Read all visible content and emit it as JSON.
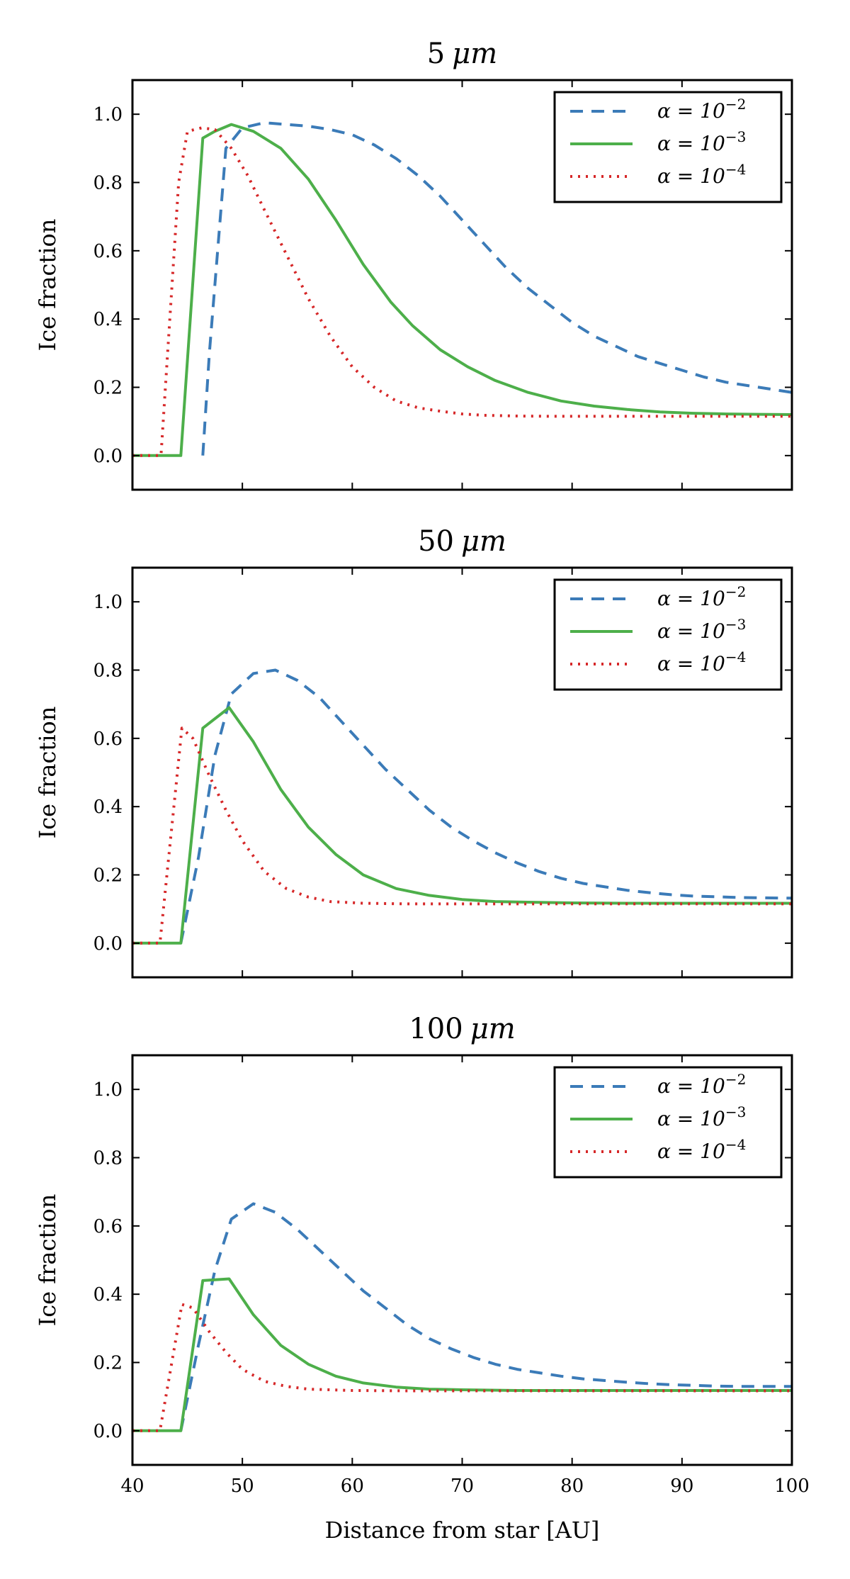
{
  "figure": {
    "xlabel": "Distance from star [AU]"
  },
  "chart_data": [
    {
      "type": "line",
      "title": "5 μm",
      "title_number": "5",
      "title_unit": "μm",
      "xlabel": "",
      "ylabel": "Ice fraction",
      "xlim": [
        40,
        100
      ],
      "ylim": [
        -0.1,
        1.1
      ],
      "xticks": [
        40,
        50,
        60,
        70,
        80,
        90,
        100
      ],
      "yticks": [
        "0.0",
        "0.2",
        "0.4",
        "0.6",
        "0.8",
        "1.0"
      ],
      "legend_position": "top-right",
      "series": [
        {
          "name": "α = 10^−2",
          "alpha_base": "α = 10",
          "alpha_exp": "−2",
          "color": "#3b7bb8",
          "style": "dashed",
          "x": [
            46.4,
            47.0,
            48.5,
            50,
            52,
            54,
            56,
            58,
            60,
            62,
            64,
            66,
            68,
            70,
            72,
            74,
            76,
            78,
            80,
            82,
            84,
            86,
            88,
            90,
            92,
            94,
            96,
            98,
            100
          ],
          "y": [
            0.0,
            0.3,
            0.9,
            0.96,
            0.975,
            0.97,
            0.965,
            0.955,
            0.94,
            0.91,
            0.87,
            0.82,
            0.76,
            0.69,
            0.62,
            0.55,
            0.49,
            0.44,
            0.39,
            0.35,
            0.32,
            0.29,
            0.27,
            0.25,
            0.23,
            0.215,
            0.205,
            0.195,
            0.185
          ]
        },
        {
          "name": "α = 10^−3",
          "alpha_base": "α = 10",
          "alpha_exp": "−3",
          "color": "#4daf4a",
          "style": "solid",
          "x": [
            40,
            44.4,
            46.4,
            47.5,
            49,
            51,
            53.5,
            56,
            58.5,
            61,
            63.5,
            65.5,
            68,
            70.5,
            73,
            76,
            79,
            82,
            85,
            88,
            91,
            94,
            97,
            100
          ],
          "y": [
            0.0,
            0.0,
            0.93,
            0.95,
            0.97,
            0.95,
            0.9,
            0.81,
            0.69,
            0.56,
            0.45,
            0.38,
            0.31,
            0.26,
            0.22,
            0.185,
            0.16,
            0.145,
            0.135,
            0.128,
            0.124,
            0.122,
            0.121,
            0.12
          ]
        },
        {
          "name": "α = 10^−4",
          "alpha_base": "α = 10",
          "alpha_exp": "−4",
          "color": "#d62728",
          "style": "dotted",
          "x": [
            40,
            42.6,
            44.2,
            45.0,
            46.3,
            47.5,
            49,
            50.5,
            52,
            54,
            56,
            58,
            60,
            62,
            64,
            66,
            68,
            70,
            72,
            75,
            78,
            82,
            86,
            90,
            95,
            100
          ],
          "y": [
            0.0,
            0.0,
            0.8,
            0.95,
            0.96,
            0.955,
            0.9,
            0.82,
            0.72,
            0.59,
            0.46,
            0.35,
            0.26,
            0.2,
            0.16,
            0.14,
            0.13,
            0.122,
            0.118,
            0.116,
            0.115,
            0.115,
            0.115,
            0.115,
            0.115,
            0.115
          ]
        }
      ]
    },
    {
      "type": "line",
      "title": "50 μm",
      "title_number": "50",
      "title_unit": "μm",
      "xlabel": "",
      "ylabel": "Ice fraction",
      "xlim": [
        40,
        100
      ],
      "ylim": [
        -0.1,
        1.1
      ],
      "xticks": [
        40,
        50,
        60,
        70,
        80,
        90,
        100
      ],
      "yticks": [
        "0.0",
        "0.2",
        "0.4",
        "0.6",
        "0.8",
        "1.0"
      ],
      "legend_position": "top-right",
      "series": [
        {
          "name": "α = 10^−2",
          "alpha_base": "α = 10",
          "alpha_exp": "−2",
          "color": "#3b7bb8",
          "style": "dashed",
          "x": [
            44.4,
            46,
            47.5,
            49,
            51,
            53,
            55,
            57,
            59,
            61,
            63,
            65,
            67,
            69,
            71,
            73,
            75,
            77,
            79,
            81,
            83,
            85,
            87,
            89,
            91,
            93,
            95,
            97,
            100
          ],
          "y": [
            0.0,
            0.25,
            0.55,
            0.73,
            0.79,
            0.8,
            0.77,
            0.72,
            0.65,
            0.58,
            0.51,
            0.45,
            0.39,
            0.34,
            0.3,
            0.265,
            0.235,
            0.21,
            0.19,
            0.175,
            0.165,
            0.155,
            0.148,
            0.142,
            0.138,
            0.136,
            0.134,
            0.133,
            0.132
          ]
        },
        {
          "name": "α = 10^−3",
          "alpha_base": "α = 10",
          "alpha_exp": "−3",
          "color": "#4daf4a",
          "style": "solid",
          "x": [
            40,
            44.4,
            46.4,
            48.8,
            51,
            53.5,
            56,
            58.5,
            61,
            64,
            67,
            70,
            73,
            76,
            80,
            85,
            90,
            95,
            100
          ],
          "y": [
            0.0,
            0.0,
            0.63,
            0.69,
            0.59,
            0.45,
            0.34,
            0.26,
            0.2,
            0.16,
            0.14,
            0.128,
            0.122,
            0.12,
            0.118,
            0.117,
            0.117,
            0.117,
            0.117
          ]
        },
        {
          "name": "α = 10^−4",
          "alpha_base": "α = 10",
          "alpha_exp": "−4",
          "color": "#d62728",
          "style": "dotted",
          "x": [
            40,
            42.5,
            44.5,
            45.5,
            47,
            48.5,
            50,
            52,
            54,
            56,
            58,
            61,
            65,
            70,
            75,
            80,
            90,
            100
          ],
          "y": [
            0.0,
            0.0,
            0.63,
            0.6,
            0.49,
            0.39,
            0.3,
            0.21,
            0.16,
            0.135,
            0.122,
            0.117,
            0.115,
            0.115,
            0.115,
            0.115,
            0.115,
            0.115
          ]
        }
      ]
    },
    {
      "type": "line",
      "title": "100 μm",
      "title_number": "100",
      "title_unit": "μm",
      "xlabel": "Distance from star [AU]",
      "ylabel": "Ice fraction",
      "xlim": [
        40,
        100
      ],
      "ylim": [
        -0.1,
        1.1
      ],
      "xticks": [
        40,
        50,
        60,
        70,
        80,
        90,
        100
      ],
      "yticks": [
        "0.0",
        "0.2",
        "0.4",
        "0.6",
        "0.8",
        "1.0"
      ],
      "legend_position": "top-right",
      "series": [
        {
          "name": "α = 10^−2",
          "alpha_base": "α = 10",
          "alpha_exp": "−2",
          "color": "#3b7bb8",
          "style": "dashed",
          "x": [
            44.4,
            46,
            47.5,
            49,
            51,
            53,
            55,
            57,
            59,
            61,
            63,
            65,
            67,
            69,
            71,
            73,
            75,
            77,
            79,
            81,
            83,
            85,
            87,
            89,
            91,
            93,
            95,
            97,
            100
          ],
          "y": [
            0.0,
            0.25,
            0.47,
            0.62,
            0.665,
            0.64,
            0.59,
            0.53,
            0.47,
            0.41,
            0.36,
            0.31,
            0.27,
            0.24,
            0.215,
            0.195,
            0.18,
            0.17,
            0.16,
            0.152,
            0.147,
            0.142,
            0.138,
            0.135,
            0.133,
            0.131,
            0.13,
            0.13,
            0.13
          ]
        },
        {
          "name": "α = 10^−3",
          "alpha_base": "α = 10",
          "alpha_exp": "−3",
          "color": "#4daf4a",
          "style": "solid",
          "x": [
            40,
            44.4,
            46.4,
            48.8,
            51,
            53.5,
            56,
            58.5,
            61,
            64,
            67,
            70,
            75,
            80,
            90,
            100
          ],
          "y": [
            0.0,
            0.0,
            0.44,
            0.445,
            0.34,
            0.25,
            0.195,
            0.16,
            0.14,
            0.128,
            0.122,
            0.12,
            0.118,
            0.118,
            0.118,
            0.118
          ]
        },
        {
          "name": "α = 10^−4",
          "alpha_base": "α = 10",
          "alpha_exp": "−4",
          "color": "#d62728",
          "style": "dotted",
          "x": [
            40,
            42.5,
            44.5,
            45.5,
            47,
            48.5,
            50,
            52,
            54,
            56,
            60,
            65,
            70,
            80,
            90,
            100
          ],
          "y": [
            0.0,
            0.0,
            0.37,
            0.36,
            0.29,
            0.23,
            0.18,
            0.145,
            0.13,
            0.122,
            0.118,
            0.117,
            0.117,
            0.117,
            0.117,
            0.117
          ]
        }
      ]
    }
  ]
}
